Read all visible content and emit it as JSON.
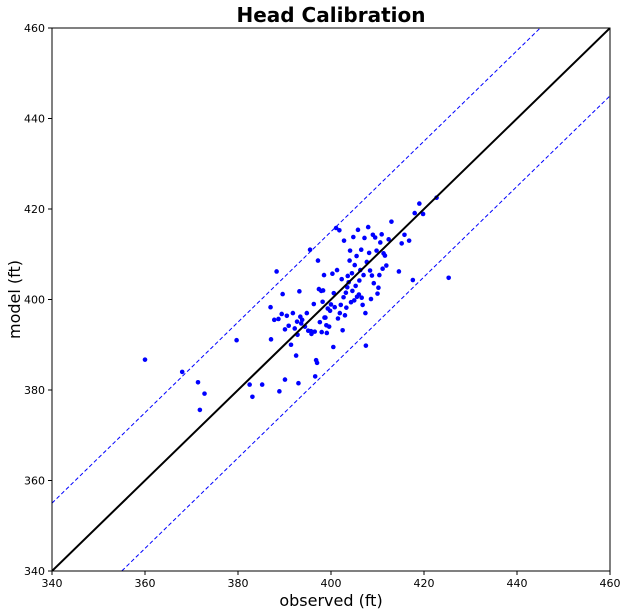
{
  "chart_data": {
    "type": "scatter",
    "title": "Head Calibration",
    "xlabel": "observed (ft)",
    "ylabel": "model (ft)",
    "xlim": [
      340,
      460
    ],
    "ylim": [
      340,
      460
    ],
    "xticks": [
      "340",
      "360",
      "380",
      "400",
      "420",
      "440",
      "460"
    ],
    "yticks": [
      "340",
      "360",
      "380",
      "400",
      "420",
      "440",
      "460"
    ],
    "grid": false,
    "legend": "none",
    "reference_line": {
      "style": "solid",
      "color": "#000000",
      "offset": 0
    },
    "error_band_lines": {
      "style": "dashed",
      "color": "#0000ff",
      "offsets": [
        15,
        -15
      ]
    },
    "point_color": "#0000ff",
    "series": [
      {
        "points": [
          [
            360.0,
            386.7
          ],
          [
            368.0,
            384.0
          ],
          [
            371.4,
            381.7
          ],
          [
            371.8,
            375.6
          ],
          [
            372.8,
            379.2
          ],
          [
            379.7,
            391.0
          ],
          [
            382.5,
            381.2
          ],
          [
            383.1,
            378.5
          ],
          [
            385.2,
            381.2
          ],
          [
            387.0,
            398.3
          ],
          [
            387.1,
            391.2
          ],
          [
            387.8,
            395.5
          ],
          [
            388.3,
            406.2
          ],
          [
            388.7,
            395.7
          ],
          [
            388.9,
            379.7
          ],
          [
            389.4,
            396.8
          ],
          [
            389.6,
            401.2
          ],
          [
            390.1,
            393.4
          ],
          [
            390.1,
            382.3
          ],
          [
            390.5,
            396.4
          ],
          [
            390.9,
            394.2
          ],
          [
            391.4,
            390.0
          ],
          [
            391.8,
            397.0
          ],
          [
            392.2,
            393.6
          ],
          [
            392.5,
            387.6
          ],
          [
            392.7,
            395.1
          ],
          [
            392.8,
            392.2
          ],
          [
            393.0,
            381.5
          ],
          [
            393.2,
            401.8
          ],
          [
            393.4,
            396.2
          ],
          [
            393.6,
            394.7
          ],
          [
            393.8,
            395.5
          ],
          [
            394.4,
            394.0
          ],
          [
            394.8,
            397.0
          ],
          [
            395.1,
            393.1
          ],
          [
            395.5,
            411.0
          ],
          [
            395.7,
            393.0
          ],
          [
            395.8,
            392.4
          ],
          [
            396.3,
            399.0
          ],
          [
            396.5,
            392.9
          ],
          [
            396.6,
            383.0
          ],
          [
            396.8,
            386.6
          ],
          [
            397.0,
            386.0
          ],
          [
            397.2,
            408.6
          ],
          [
            397.4,
            402.3
          ],
          [
            397.6,
            395.0
          ],
          [
            397.9,
            401.9
          ],
          [
            398.0,
            392.8
          ],
          [
            398.2,
            399.5
          ],
          [
            398.3,
            402.0
          ],
          [
            398.5,
            405.4
          ],
          [
            398.6,
            396.0
          ],
          [
            398.8,
            396.0
          ],
          [
            399.0,
            394.3
          ],
          [
            399.1,
            392.6
          ],
          [
            399.3,
            398.0
          ],
          [
            399.6,
            394.0
          ],
          [
            399.8,
            397.5
          ],
          [
            400.0,
            398.9
          ],
          [
            400.3,
            405.7
          ],
          [
            400.5,
            389.5
          ],
          [
            400.6,
            401.4
          ],
          [
            400.8,
            398.3
          ],
          [
            401.1,
            415.8
          ],
          [
            401.3,
            406.5
          ],
          [
            401.5,
            395.8
          ],
          [
            401.8,
            415.3
          ],
          [
            401.9,
            397.0
          ],
          [
            402.1,
            398.8
          ],
          [
            402.3,
            404.5
          ],
          [
            402.5,
            393.2
          ],
          [
            402.7,
            400.5
          ],
          [
            402.8,
            413.0
          ],
          [
            403.0,
            396.5
          ],
          [
            403.2,
            401.5
          ],
          [
            403.3,
            398.2
          ],
          [
            403.5,
            402.7
          ],
          [
            403.6,
            405.2
          ],
          [
            403.8,
            403.8
          ],
          [
            404.0,
            408.6
          ],
          [
            404.1,
            410.8
          ],
          [
            404.3,
            399.4
          ],
          [
            404.5,
            405.8
          ],
          [
            404.6,
            401.9
          ],
          [
            404.8,
            413.8
          ],
          [
            405.0,
            399.8
          ],
          [
            405.1,
            407.6
          ],
          [
            405.3,
            403.0
          ],
          [
            405.5,
            409.6
          ],
          [
            405.6,
            400.6
          ],
          [
            405.8,
            415.4
          ],
          [
            406.0,
            401.1
          ],
          [
            406.1,
            404.2
          ],
          [
            406.3,
            406.5
          ],
          [
            406.5,
            411.0
          ],
          [
            406.6,
            400.4
          ],
          [
            406.8,
            398.8
          ],
          [
            407.0,
            405.4
          ],
          [
            407.2,
            413.6
          ],
          [
            407.4,
            397.0
          ],
          [
            407.5,
            389.8
          ],
          [
            407.7,
            408.3
          ],
          [
            408.0,
            416.0
          ],
          [
            408.2,
            410.3
          ],
          [
            408.4,
            406.4
          ],
          [
            408.6,
            400.1
          ],
          [
            408.8,
            405.3
          ],
          [
            409.0,
            414.3
          ],
          [
            409.2,
            403.6
          ],
          [
            409.5,
            413.7
          ],
          [
            409.8,
            410.8
          ],
          [
            410.0,
            401.3
          ],
          [
            410.2,
            402.6
          ],
          [
            410.4,
            405.4
          ],
          [
            410.6,
            412.6
          ],
          [
            410.9,
            414.4
          ],
          [
            411.1,
            406.8
          ],
          [
            411.3,
            410.2
          ],
          [
            411.6,
            409.7
          ],
          [
            411.9,
            407.5
          ],
          [
            412.4,
            413.3
          ],
          [
            413.0,
            417.2
          ],
          [
            414.6,
            406.2
          ],
          [
            415.2,
            412.4
          ],
          [
            415.8,
            414.3
          ],
          [
            416.8,
            413.0
          ],
          [
            417.6,
            404.3
          ],
          [
            418.0,
            419.1
          ],
          [
            419.0,
            421.2
          ],
          [
            419.8,
            418.9
          ],
          [
            422.7,
            422.5
          ],
          [
            425.3,
            404.8
          ]
        ]
      }
    ]
  }
}
